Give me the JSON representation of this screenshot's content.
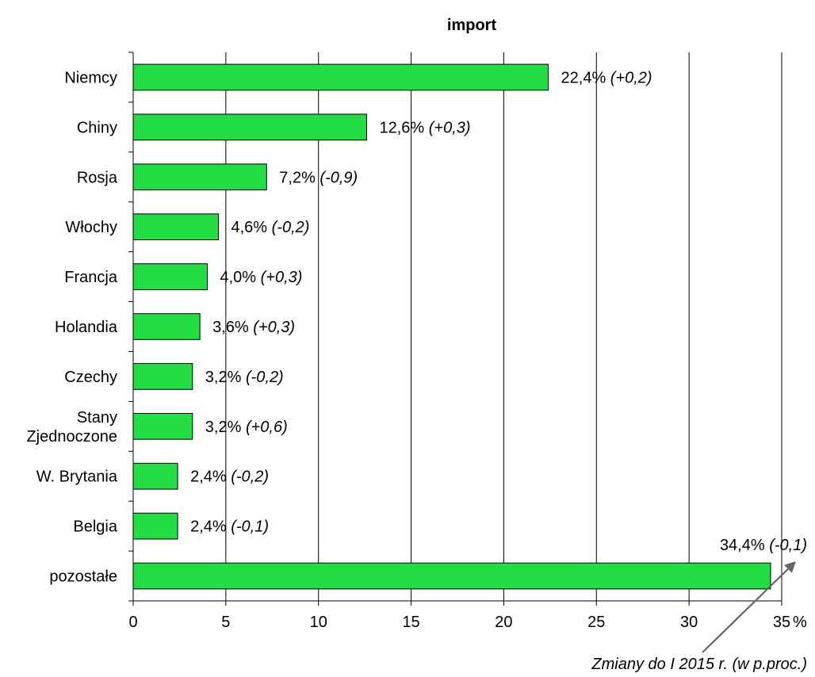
{
  "chart_data": {
    "type": "bar",
    "orientation": "horizontal",
    "title": "import",
    "categories": [
      [
        "Niemcy"
      ],
      [
        "Chiny"
      ],
      [
        "Rosja"
      ],
      [
        "Włochy"
      ],
      [
        "Francja"
      ],
      [
        "Holandia"
      ],
      [
        "Czechy"
      ],
      [
        "Stany",
        "Zjednoczone"
      ],
      [
        "W. Brytania"
      ],
      [
        "Belgia"
      ],
      [
        "pozostałe"
      ]
    ],
    "values": [
      22.4,
      12.6,
      7.2,
      4.6,
      4.0,
      3.6,
      3.2,
      3.2,
      2.4,
      2.4,
      34.4
    ],
    "value_labels": [
      "22,4%",
      "12,6%",
      "7,2%",
      "4,6%",
      "4,0%",
      "3,6%",
      "3,2%",
      "3,2%",
      "2,4%",
      "2,4%",
      "34,4%"
    ],
    "changes": [
      0.2,
      0.3,
      -0.9,
      -0.2,
      0.3,
      0.3,
      -0.2,
      0.6,
      -0.2,
      -0.1,
      -0.1
    ],
    "change_labels": [
      "(+0,2)",
      "(+0,3)",
      "(-0,9)",
      "(-0,2)",
      "(+0,3)",
      "(+0,3)",
      "(-0,2)",
      "(+0,6)",
      "(-0,2)",
      "(-0,1)",
      "(-0,1)"
    ],
    "xlim": [
      0,
      35
    ],
    "xticks": [
      0,
      5,
      10,
      15,
      20,
      25,
      30,
      35
    ],
    "xtick_labels": [
      "0",
      "5",
      "10",
      "15",
      "20",
      "25",
      "30",
      "35"
    ],
    "x_unit": "%",
    "annotation": "Zmiany do I 2015 r. (w p.proc.)",
    "bar_color": "#22dd44",
    "bar_stroke": "#000000",
    "grid": true
  }
}
